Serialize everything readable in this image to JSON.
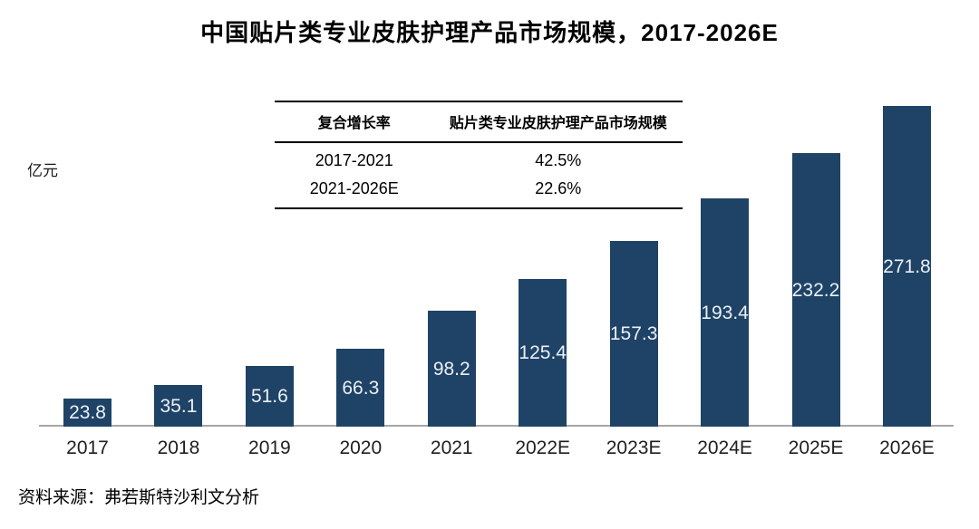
{
  "page": {
    "title": "中国贴片类专业皮肤护理产品市场规模，2017-2026E",
    "unit_label": "亿元",
    "source_note": "资料来源：弗若斯特沙利文分析"
  },
  "cagr_table": {
    "col_headers": [
      "复合增长率",
      "贴片类专业皮肤护理产品市场规模"
    ],
    "rows": [
      {
        "period": "2017-2021",
        "cagr": "42.5%"
      },
      {
        "period": "2021-2026E",
        "cagr": "22.6%"
      }
    ]
  },
  "chart_data": {
    "type": "bar",
    "title": "中国贴片类专业皮肤护理产品市场规模，2017-2026E",
    "ylabel": "亿元",
    "xlabel": "",
    "categories": [
      "2017",
      "2018",
      "2019",
      "2020",
      "2021",
      "2022E",
      "2023E",
      "2024E",
      "2025E",
      "2026E"
    ],
    "values": [
      23.8,
      35.1,
      51.6,
      66.3,
      98.2,
      125.4,
      157.3,
      193.4,
      232.2,
      271.8
    ],
    "ylim": [
      0,
      280
    ],
    "grid": false,
    "legend": false,
    "value_labels_inside_bars": true,
    "bar_color": "#1f4366",
    "value_label_color": "#eaf0f6",
    "axis_line_color": "#a6a6a6"
  }
}
